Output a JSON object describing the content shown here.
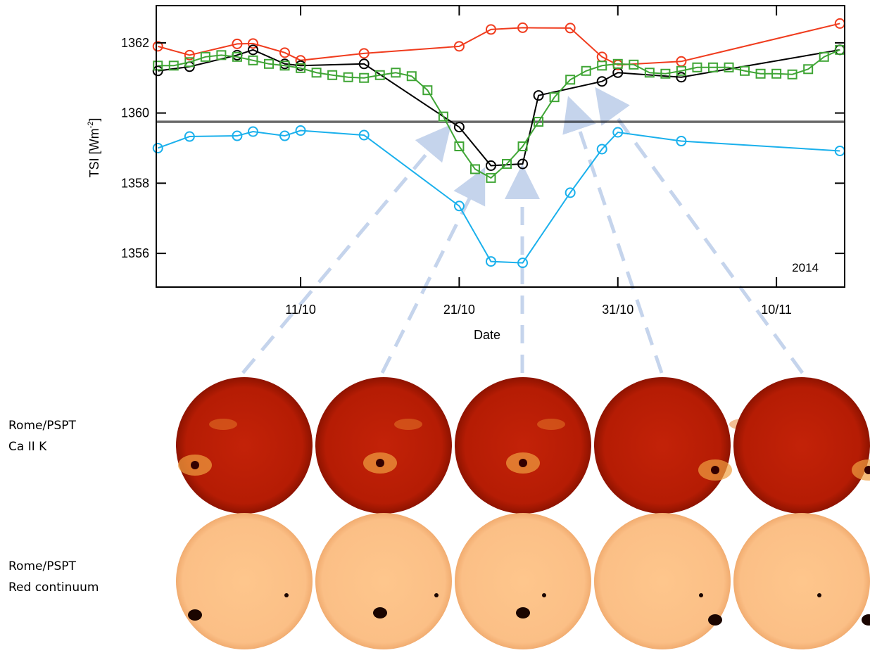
{
  "chart_data": {
    "type": "line",
    "xlabel": "Date",
    "ylabel": "TSI [Wm",
    "ylabel_sup": "-2",
    "ylabel_end": "]",
    "annotation": "2014",
    "xlim": [
      1.9,
      45.3
    ],
    "ylim": [
      1355.04,
      1363.06
    ],
    "xticks": [
      {
        "value": 11,
        "label": "11/10"
      },
      {
        "value": 21,
        "label": "21/10"
      },
      {
        "value": 31,
        "label": "31/10"
      },
      {
        "value": 41,
        "label": "10/11"
      }
    ],
    "yticks": [
      1356,
      1358,
      1360,
      1362
    ],
    "hline": 1359.75,
    "series": [
      {
        "color": "#f03c1e",
        "marker": "circle",
        "x": [
          2,
          4,
          7,
          8,
          10,
          11,
          15,
          21,
          23,
          25,
          28,
          30,
          31,
          35,
          45
        ],
        "values": [
          1361.9,
          1361.65,
          1361.97,
          1361.98,
          1361.72,
          1361.5,
          1361.7,
          1361.9,
          1362.38,
          1362.43,
          1362.42,
          1361.6,
          1361.37,
          1361.47,
          1362.55
        ]
      },
      {
        "color": "#000000",
        "marker": "circle",
        "x": [
          2,
          4,
          7,
          8,
          10,
          11,
          15,
          21,
          23,
          25,
          26,
          30,
          31,
          35,
          45
        ],
        "values": [
          1361.2,
          1361.32,
          1361.65,
          1361.8,
          1361.4,
          1361.35,
          1361.4,
          1359.6,
          1358.5,
          1358.55,
          1360.5,
          1360.9,
          1361.15,
          1361.02,
          1361.8
        ]
      },
      {
        "color": "#1ab0ec",
        "marker": "circle",
        "x": [
          2,
          4,
          7,
          8,
          10,
          11,
          15,
          21,
          23,
          25,
          28,
          30,
          31,
          35,
          45
        ],
        "values": [
          1359.0,
          1359.33,
          1359.35,
          1359.47,
          1359.35,
          1359.5,
          1359.37,
          1357.35,
          1355.77,
          1355.73,
          1357.73,
          1358.97,
          1359.45,
          1359.2,
          1358.92
        ]
      },
      {
        "color": "#3fa535",
        "marker": "square",
        "x": [
          2,
          3,
          4,
          5,
          6,
          7,
          8,
          9,
          10,
          11,
          12,
          13,
          14,
          15,
          16,
          17,
          18,
          19,
          20,
          21,
          22,
          23,
          24,
          25,
          26,
          27,
          28,
          29,
          30,
          31,
          32,
          33,
          34,
          35,
          36,
          37,
          38,
          39,
          40,
          41,
          42,
          43,
          44,
          45
        ],
        "values": [
          1361.35,
          1361.35,
          1361.45,
          1361.6,
          1361.65,
          1361.6,
          1361.5,
          1361.4,
          1361.35,
          1361.28,
          1361.15,
          1361.08,
          1361.02,
          1361.0,
          1361.08,
          1361.15,
          1361.05,
          1360.65,
          1359.9,
          1359.05,
          1358.4,
          1358.15,
          1358.55,
          1359.05,
          1359.75,
          1360.45,
          1360.95,
          1361.2,
          1361.35,
          1361.4,
          1361.38,
          1361.15,
          1361.12,
          1361.2,
          1361.3,
          1361.3,
          1361.3,
          1361.2,
          1361.12,
          1361.12,
          1361.1,
          1361.25,
          1361.6,
          1361.8
        ]
      }
    ]
  },
  "rows": [
    {
      "label": [
        "Rome/PSPT",
        "Ca II K"
      ]
    },
    {
      "label": [
        "Rome/PSPT",
        "Red continuum"
      ]
    }
  ]
}
